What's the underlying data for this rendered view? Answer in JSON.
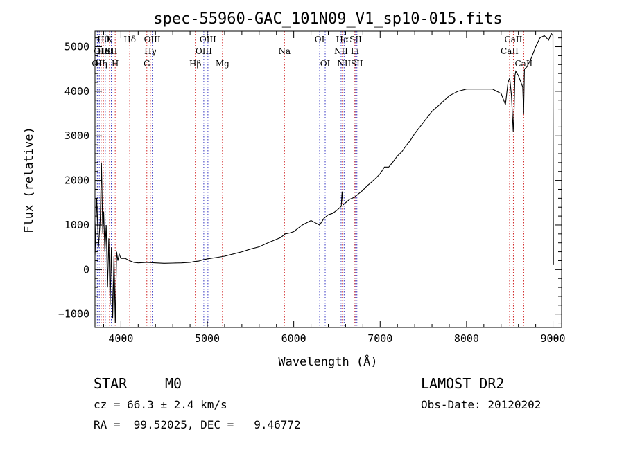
{
  "chart_data": {
    "type": "line",
    "title": "spec-55960-GAC_101N09_V1_sp10-015.fits",
    "xlabel": "Wavelength (Å)",
    "ylabel": "Flux (relative)",
    "xlim": [
      3700,
      9100
    ],
    "ylim": [
      -1300,
      5350
    ],
    "xticks": [
      4000,
      5000,
      6000,
      7000,
      8000,
      9000
    ],
    "yticks": [
      -1000,
      0,
      1000,
      2000,
      3000,
      4000,
      5000
    ],
    "grid": false,
    "series": [
      {
        "x": [
          3700,
          3720,
          3740,
          3760,
          3775,
          3790,
          3800,
          3815,
          3830,
          3845,
          3860,
          3875,
          3890,
          3905,
          3920,
          3935,
          3950,
          3965,
          3980,
          4000,
          4050,
          4100,
          4150,
          4200,
          4300,
          4400,
          4500,
          4600,
          4700,
          4800,
          4850,
          4900,
          4950,
          5000,
          5100,
          5200,
          5300,
          5400,
          5500,
          5600,
          5700,
          5800,
          5850,
          5900,
          5950,
          6000,
          6100,
          6200,
          6250,
          6300,
          6350,
          6400,
          6450,
          6500,
          6550,
          6560,
          6570,
          6600,
          6650,
          6700,
          6750,
          6800,
          6850,
          6900,
          6950,
          7000,
          7050,
          7100,
          7150,
          7200,
          7250,
          7300,
          7350,
          7400,
          7500,
          7600,
          7700,
          7800,
          7900,
          8000,
          8100,
          8200,
          8300,
          8400,
          8450,
          8480,
          8500,
          8520,
          8540,
          8550,
          8560,
          8570,
          8600,
          8650,
          8660,
          8670,
          8700,
          8750,
          8800,
          8850,
          8900,
          8950,
          8980,
          9000,
          9005
        ],
        "y": [
          300,
          1600,
          500,
          1100,
          2400,
          800,
          1300,
          400,
          1000,
          -400,
          700,
          -800,
          500,
          -1100,
          300,
          -1200,
          400,
          200,
          350,
          250,
          250,
          200,
          160,
          150,
          160,
          150,
          140,
          145,
          150,
          160,
          180,
          190,
          220,
          240,
          270,
          300,
          350,
          400,
          460,
          510,
          600,
          680,
          720,
          800,
          820,
          850,
          1000,
          1100,
          1050,
          1000,
          1150,
          1230,
          1260,
          1330,
          1420,
          1750,
          1450,
          1500,
          1580,
          1620,
          1700,
          1780,
          1880,
          1960,
          2050,
          2150,
          2300,
          2300,
          2420,
          2550,
          2640,
          2780,
          2900,
          3050,
          3300,
          3550,
          3720,
          3900,
          4000,
          4050,
          4050,
          4050,
          4050,
          3950,
          3700,
          4200,
          4300,
          3900,
          3100,
          3600,
          4350,
          4450,
          4350,
          4100,
          3500,
          4500,
          4550,
          4750,
          5000,
          5200,
          5250,
          5150,
          5300,
          5250,
          100
        ]
      }
    ],
    "line_markers": [
      {
        "wl": 3727,
        "label": "OII",
        "row": 2,
        "side": "left",
        "color": "blue"
      },
      {
        "wl": 3750,
        "label": "OIII",
        "row": 1,
        "side": "left",
        "color": "blue"
      },
      {
        "wl": 3771,
        "label": "Hη",
        "row": 2,
        "side": "center",
        "color": "red"
      },
      {
        "wl": 3797,
        "label": "Hθ",
        "row": 0,
        "side": "center",
        "color": "red"
      },
      {
        "wl": 3819,
        "label": "HeI",
        "row": 1,
        "side": "center",
        "color": "blue"
      },
      {
        "wl": 3868,
        "label": "K",
        "row": 0,
        "side": "center",
        "color": "red"
      },
      {
        "wl": 3889,
        "label": "SII",
        "row": 1,
        "side": "center",
        "color": "blue"
      },
      {
        "wl": 3934,
        "label": "H",
        "row": 2,
        "side": "center",
        "color": "red"
      },
      {
        "wl": 4102,
        "label": "Hδ",
        "row": 0,
        "side": "center",
        "color": "red"
      },
      {
        "wl": 4300,
        "label": "G",
        "row": 2,
        "side": "center",
        "color": "red"
      },
      {
        "wl": 4341,
        "label": "Hγ",
        "row": 1,
        "side": "center",
        "color": "red"
      },
      {
        "wl": 4363,
        "label": "OIII",
        "row": 0,
        "side": "center",
        "color": "blue"
      },
      {
        "wl": 4861,
        "label": "Hβ",
        "row": 2,
        "side": "center",
        "color": "red"
      },
      {
        "wl": 4959,
        "label": "OIII",
        "row": 1,
        "side": "center",
        "color": "blue"
      },
      {
        "wl": 5007,
        "label": "OIII",
        "row": 0,
        "side": "center",
        "color": "blue"
      },
      {
        "wl": 5175,
        "label": "Mg",
        "row": 2,
        "side": "center",
        "color": "red"
      },
      {
        "wl": 5893,
        "label": "Na",
        "row": 1,
        "side": "center",
        "color": "red"
      },
      {
        "wl": 6300,
        "label": "OI",
        "row": 0,
        "side": "center",
        "color": "blue"
      },
      {
        "wl": 6364,
        "label": "OI",
        "row": 2,
        "side": "center",
        "color": "blue"
      },
      {
        "wl": 6548,
        "label": "NII",
        "row": 1,
        "side": "center",
        "color": "blue"
      },
      {
        "wl": 6563,
        "label": "Hα",
        "row": 0,
        "side": "center",
        "color": "red"
      },
      {
        "wl": 6583,
        "label": "NII",
        "row": 2,
        "side": "center",
        "color": "blue"
      },
      {
        "wl": 6707,
        "label": "Li",
        "row": 1,
        "side": "center",
        "color": "red"
      },
      {
        "wl": 6717,
        "label": "SII",
        "row": 0,
        "side": "center",
        "color": "blue"
      },
      {
        "wl": 6731,
        "label": "SII",
        "row": 2,
        "side": "center",
        "color": "blue"
      },
      {
        "wl": 8498,
        "label": "CaII",
        "row": 1,
        "side": "center",
        "color": "red"
      },
      {
        "wl": 8542,
        "label": "CaII",
        "row": 0,
        "side": "center",
        "color": "red"
      },
      {
        "wl": 8662,
        "label": "CaII",
        "row": 2,
        "side": "center",
        "color": "red"
      }
    ],
    "colors": {
      "red": "#d02020",
      "blue": "#3030c0",
      "spectrum": "#000000"
    }
  },
  "info": {
    "object_class": "STAR",
    "subclass": "M0",
    "cz": "cz = 66.3 ± 2.4 km/s",
    "coords": "RA =  99.52025, DEC =   9.46772",
    "survey": "LAMOST DR2",
    "obs_date": "Obs-Date: 20120202"
  }
}
